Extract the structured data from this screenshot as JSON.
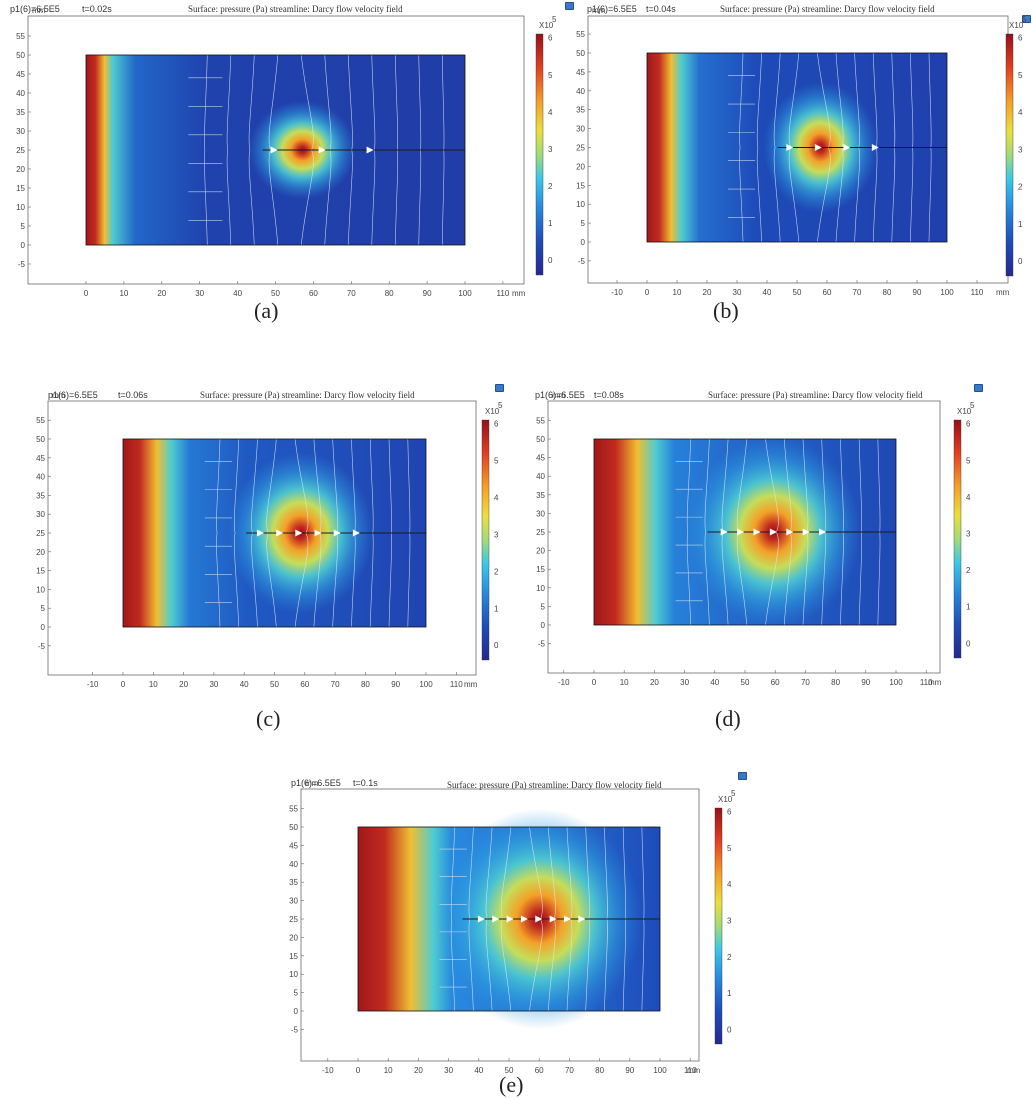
{
  "title": "Surface: pressure (Pa) streamline: Darcy flow velocity field",
  "pressure_label": "p1(6)=6.5E5",
  "colorbar_exponent": "X10",
  "colorbar_power": "5",
  "colorbar_ticks": [
    "0",
    "1",
    "2",
    "3",
    "4",
    "5",
    "6"
  ],
  "x_ticks": [
    "-10",
    "0",
    "10",
    "20",
    "30",
    "40",
    "50",
    "60",
    "70",
    "80",
    "90",
    "100",
    "110"
  ],
  "y_ticks": [
    "-5",
    "0",
    "5",
    "10",
    "15",
    "20",
    "25",
    "30",
    "35",
    "40",
    "45",
    "50",
    "55"
  ],
  "unit": "mm",
  "panels": [
    {
      "id": "a",
      "time": "t=0.02s",
      "caption": "(a)",
      "spread": 0.0
    },
    {
      "id": "b",
      "time": "t=0.04s",
      "caption": "(b)",
      "spread": 0.25
    },
    {
      "id": "c",
      "time": "t=0.06s",
      "caption": "(c)",
      "spread": 0.5
    },
    {
      "id": "d",
      "time": "t=0.08s",
      "caption": "(d)",
      "spread": 0.75
    },
    {
      "id": "e",
      "time": "t=0.1s",
      "caption": "(e)",
      "spread": 1.0
    }
  ],
  "colors": {
    "frame": "#6a6a6a",
    "streamline": "#dfe8f5",
    "arrow": "#ffffff"
  }
}
